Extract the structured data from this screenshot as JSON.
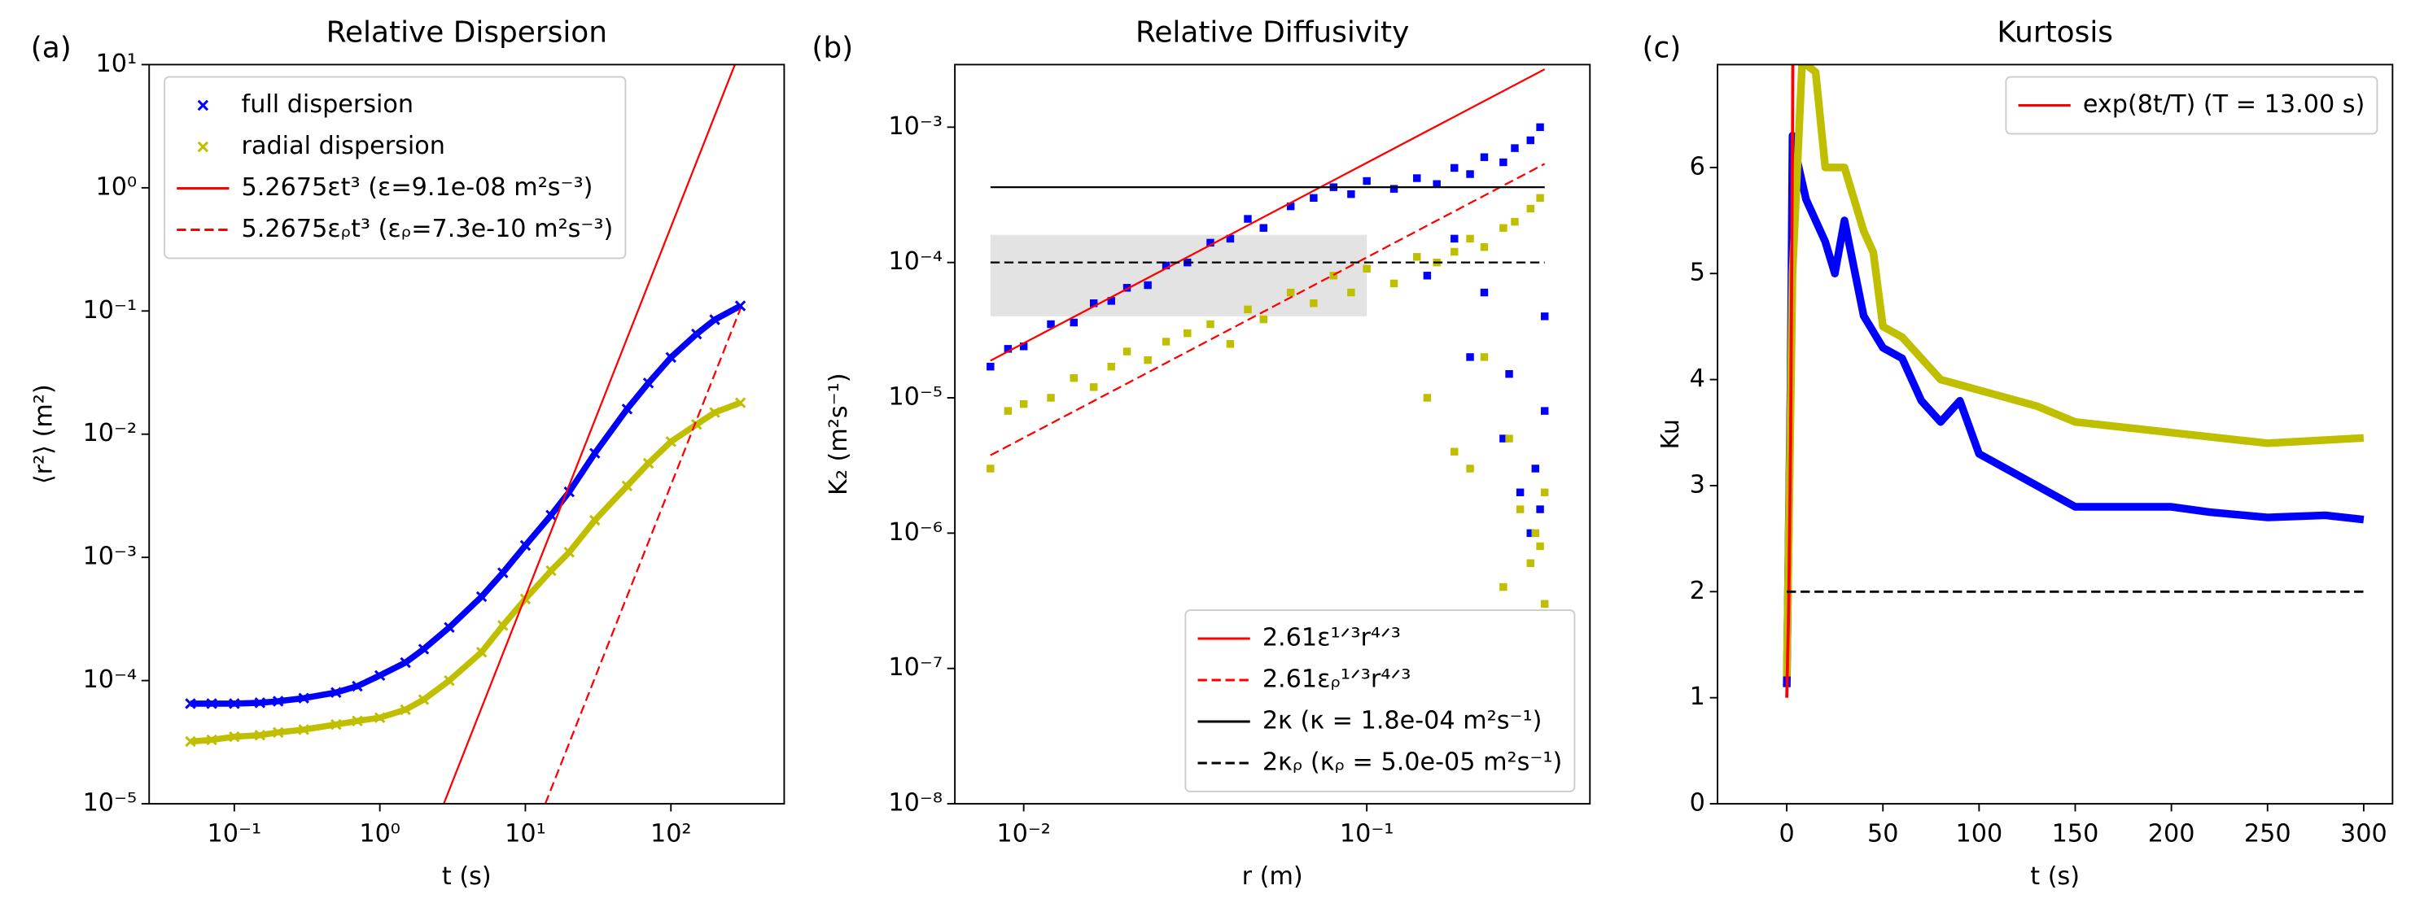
{
  "chart_data": [
    {
      "type": "line",
      "panel_label": "(a)",
      "title": "Relative Dispersion",
      "xlabel": "t (s)",
      "ylabel": "⟨r²⟩ (m²)",
      "xscale": "log",
      "yscale": "log",
      "xlim": [
        0.026,
        600
      ],
      "ylim": [
        1e-05,
        10
      ],
      "xticks": [
        {
          "value": 0.1,
          "label": "10⁻¹"
        },
        {
          "value": 1,
          "label": "10⁰"
        },
        {
          "value": 10,
          "label": "10¹"
        },
        {
          "value": 100,
          "label": "10²"
        }
      ],
      "yticks": [
        {
          "value": 1e-05,
          "label": "10⁻⁵"
        },
        {
          "value": 0.0001,
          "label": "10⁻⁴"
        },
        {
          "value": 0.001,
          "label": "10⁻³"
        },
        {
          "value": 0.01,
          "label": "10⁻²"
        },
        {
          "value": 0.1,
          "label": "10⁻¹"
        },
        {
          "value": 1,
          "label": "10⁰"
        },
        {
          "value": 10,
          "label": "10¹"
        }
      ],
      "legend": "upper left",
      "series": [
        {
          "name": "full dispersion",
          "color": "#0000ff",
          "marker": "x",
          "linewidth": 4,
          "x": [
            0.05,
            0.07,
            0.1,
            0.15,
            0.2,
            0.3,
            0.5,
            0.7,
            1,
            1.5,
            2,
            3,
            5,
            7,
            10,
            15,
            20,
            30,
            50,
            70,
            100,
            150,
            200,
            300
          ],
          "values": [
            6.5e-05,
            6.5e-05,
            6.5e-05,
            6.6e-05,
            6.8e-05,
            7.2e-05,
            8e-05,
            9e-05,
            0.00011,
            0.00014,
            0.00018,
            0.00027,
            0.00048,
            0.00075,
            0.00125,
            0.0022,
            0.0034,
            0.007,
            0.016,
            0.026,
            0.042,
            0.065,
            0.085,
            0.11
          ]
        },
        {
          "name": "radial dispersion",
          "color": "#bfbf00",
          "marker": "x",
          "linewidth": 4,
          "x": [
            0.05,
            0.07,
            0.1,
            0.15,
            0.2,
            0.3,
            0.5,
            0.7,
            1,
            1.5,
            2,
            3,
            5,
            7,
            10,
            15,
            20,
            30,
            50,
            70,
            100,
            150,
            200,
            300
          ],
          "values": [
            3.2e-05,
            3.3e-05,
            3.5e-05,
            3.6e-05,
            3.8e-05,
            4e-05,
            4.4e-05,
            4.7e-05,
            5e-05,
            5.8e-05,
            7e-05,
            0.0001,
            0.00017,
            0.00028,
            0.00046,
            0.00078,
            0.0011,
            0.002,
            0.0038,
            0.0058,
            0.0087,
            0.012,
            0.015,
            0.018
          ]
        },
        {
          "name": "5.2675εt³ (ε=9.1e-08 m²s⁻³)",
          "color": "#ff0000",
          "linewidth": 1.2,
          "x": [
            2.75,
            275
          ],
          "values": [
            1e-05,
            10
          ]
        },
        {
          "name": "5.2675εᵨt³ (εᵨ=7.3e-10 m²s⁻³)",
          "color": "#ff0000",
          "linewidth": 1.2,
          "dash": true,
          "x": [
            13.7,
            300
          ],
          "values": [
            1e-05,
            0.104
          ]
        }
      ]
    },
    {
      "type": "scatter",
      "panel_label": "(b)",
      "title": "Relative Diffusivity",
      "xlabel": "r (m)",
      "ylabel": "K₂ (m²s⁻¹)",
      "xscale": "log",
      "yscale": "log",
      "xlim": [
        0.0063,
        0.447
      ],
      "ylim": [
        1e-08,
        0.0029
      ],
      "xticks": [
        {
          "value": 0.01,
          "label": "10⁻²"
        },
        {
          "value": 0.1,
          "label": "10⁻¹"
        }
      ],
      "yticks": [
        {
          "value": 1e-08,
          "label": "10⁻⁸"
        },
        {
          "value": 1e-07,
          "label": "10⁻⁷"
        },
        {
          "value": 1e-06,
          "label": "10⁻⁶"
        },
        {
          "value": 1e-05,
          "label": "10⁻⁵"
        },
        {
          "value": 0.0001,
          "label": "10⁻⁴"
        },
        {
          "value": 0.001,
          "label": "10⁻³"
        }
      ],
      "shaded_region": {
        "x": [
          0.008,
          0.1
        ],
        "y": [
          4e-05,
          0.00016
        ],
        "color": "#e3e3e3"
      },
      "legend": "lower right",
      "series": [
        {
          "color": "#0000ff",
          "marker": "s",
          "x": [
            0.008,
            0.009,
            0.01,
            0.012,
            0.014,
            0.016,
            0.018,
            0.02,
            0.023,
            0.026,
            0.03,
            0.035,
            0.04,
            0.045,
            0.05,
            0.06,
            0.07,
            0.08,
            0.09,
            0.1,
            0.12,
            0.14,
            0.16,
            0.18,
            0.2,
            0.22,
            0.25,
            0.27,
            0.3,
            0.32,
            0.15,
            0.2,
            0.25,
            0.28,
            0.3,
            0.31,
            0.32,
            0.33,
            0.33,
            0.26,
            0.22,
            0.18
          ],
          "values": [
            1.7e-05,
            2.3e-05,
            2.4e-05,
            3.5e-05,
            3.6e-05,
            5e-05,
            5.2e-05,
            6.5e-05,
            6.8e-05,
            9.5e-05,
            0.0001,
            0.00014,
            0.00015,
            0.00021,
            0.00018,
            0.00026,
            0.0003,
            0.00036,
            0.00032,
            0.0004,
            0.00035,
            0.00042,
            0.00038,
            0.0005,
            0.00045,
            0.0006,
            0.00055,
            0.0007,
            0.0008,
            0.001,
            8e-05,
            2e-05,
            5e-06,
            2e-06,
            1e-06,
            3e-06,
            1.5e-06,
            8e-06,
            4e-05,
            1.5e-05,
            6e-05,
            0.00015
          ]
        },
        {
          "color": "#bfbf00",
          "marker": "s",
          "x": [
            0.008,
            0.009,
            0.01,
            0.012,
            0.014,
            0.016,
            0.018,
            0.02,
            0.023,
            0.026,
            0.03,
            0.035,
            0.04,
            0.045,
            0.05,
            0.06,
            0.07,
            0.08,
            0.09,
            0.1,
            0.12,
            0.14,
            0.16,
            0.18,
            0.2,
            0.22,
            0.25,
            0.27,
            0.3,
            0.32,
            0.15,
            0.2,
            0.25,
            0.28,
            0.3,
            0.31,
            0.32,
            0.33,
            0.33,
            0.26,
            0.22,
            0.18
          ],
          "values": [
            3e-06,
            8e-06,
            9e-06,
            1e-05,
            1.4e-05,
            1.2e-05,
            1.7e-05,
            2.2e-05,
            1.9e-05,
            2.6e-05,
            3e-05,
            3.5e-05,
            2.5e-05,
            4.5e-05,
            3.8e-05,
            6e-05,
            5e-05,
            8e-05,
            6e-05,
            9e-05,
            7e-05,
            0.00011,
            0.0001,
            0.00012,
            0.00015,
            0.00013,
            0.00018,
            0.0002,
            0.00025,
            0.0003,
            1e-05,
            3e-06,
            4e-07,
            1.5e-06,
            6e-07,
            1e-06,
            8e-07,
            3e-07,
            2e-06,
            5e-06,
            2e-05,
            4e-06
          ]
        },
        {
          "name": "2.61ε¹ᐟ³r⁴ᐟ³",
          "color": "#ff0000",
          "linewidth": 1.2,
          "x": [
            0.008,
            0.33
          ],
          "values": [
            1.88e-05,
            0.00268
          ]
        },
        {
          "name": "2.61εᵨ¹ᐟ³r⁴ᐟ³",
          "color": "#ff0000",
          "linewidth": 1.2,
          "dash": true,
          "x": [
            0.008,
            0.33
          ],
          "values": [
            3.76e-06,
            0.000536
          ]
        },
        {
          "name": "2κ (κ = 1.8e-04 m²s⁻¹)",
          "color": "#000000",
          "linewidth": 1.2,
          "x": [
            0.008,
            0.33
          ],
          "values": [
            0.00036,
            0.00036
          ]
        },
        {
          "name": "2κᵨ (κᵨ = 5.0e-05 m²s⁻¹)",
          "color": "#000000",
          "linewidth": 1.2,
          "dash": true,
          "x": [
            0.008,
            0.33
          ],
          "values": [
            0.0001,
            0.0001
          ]
        }
      ]
    },
    {
      "type": "line",
      "panel_label": "(c)",
      "title": "Kurtosis",
      "xlabel": "t (s)",
      "ylabel": "Ku",
      "xscale": "linear",
      "yscale": "linear",
      "xlim": [
        -36,
        315
      ],
      "ylim": [
        0,
        6.97
      ],
      "xticks": [
        0,
        50,
        100,
        150,
        200,
        250,
        300
      ],
      "yticks": [
        0,
        1,
        2,
        3,
        4,
        5,
        6
      ],
      "legend": "upper right",
      "series": [
        {
          "color": "#0000ff",
          "linewidth": 5,
          "x": [
            0,
            2,
            3,
            5,
            10,
            20,
            25,
            30,
            40,
            50,
            60,
            70,
            80,
            90,
            100,
            120,
            150,
            180,
            200,
            220,
            250,
            280,
            300
          ],
          "values": [
            1.1,
            4,
            6.3,
            6.1,
            5.7,
            5.3,
            5.0,
            5.5,
            4.6,
            4.3,
            4.2,
            3.8,
            3.6,
            3.8,
            3.3,
            3.1,
            2.8,
            2.8,
            2.8,
            2.75,
            2.7,
            2.72,
            2.68
          ]
        },
        {
          "color": "#bfbf00",
          "linewidth": 5,
          "x": [
            0,
            3,
            8,
            15,
            20,
            30,
            40,
            45,
            50,
            60,
            80,
            100,
            130,
            150,
            200,
            250,
            300
          ],
          "values": [
            1.2,
            5,
            7,
            6.9,
            6.0,
            6.0,
            5.4,
            5.2,
            4.5,
            4.4,
            4.0,
            3.9,
            3.75,
            3.6,
            3.5,
            3.4,
            3.45
          ]
        },
        {
          "name": "exp(8t/T) (T = 13.00 s)",
          "color": "#ff0000",
          "linewidth": 2,
          "x": [
            0,
            1,
            2,
            3,
            3.2
          ],
          "values": [
            1,
            1.85,
            3.42,
            6.33,
            7.17
          ]
        },
        {
          "color": "#000000",
          "linewidth": 1.5,
          "dash": true,
          "x": [
            0,
            300
          ],
          "values": [
            2,
            2
          ]
        }
      ]
    }
  ]
}
